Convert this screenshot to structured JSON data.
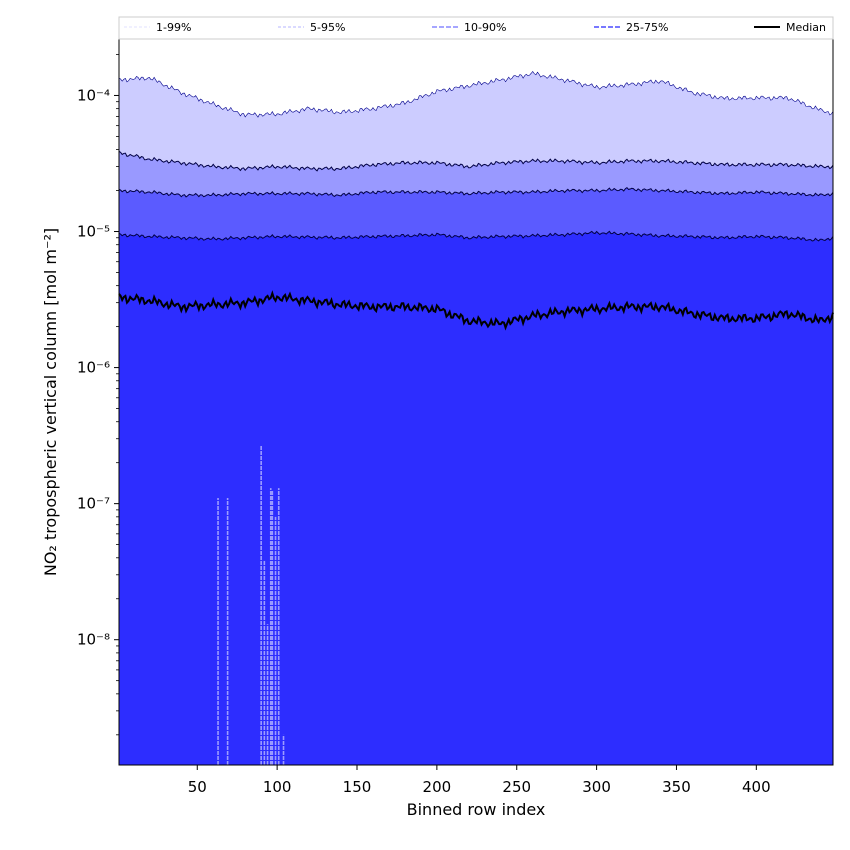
{
  "chart_data": {
    "type": "area",
    "xlabel": "Binned row index",
    "ylabel": "NO₂ tropospheric vertical column [mol m⁻²]",
    "xlim": [
      1,
      448
    ],
    "ylim": [
      1.2e-09,
      0.00026
    ],
    "yscale": "log",
    "grid": false,
    "legend_position": "top",
    "x_ticks": [
      50,
      100,
      150,
      200,
      250,
      300,
      350,
      400
    ],
    "y_ticks": [
      {
        "value": 1e-08,
        "label": "10⁻⁸"
      },
      {
        "value": 1e-07,
        "label": "10⁻⁷"
      },
      {
        "value": 1e-06,
        "label": "10⁻⁶"
      },
      {
        "value": 1e-05,
        "label": "10⁻⁵"
      },
      {
        "value": 0.0001,
        "label": "10⁻⁴"
      }
    ],
    "x": [
      1,
      20,
      40,
      60,
      80,
      100,
      120,
      140,
      160,
      180,
      200,
      220,
      240,
      260,
      280,
      300,
      320,
      340,
      360,
      380,
      400,
      420,
      440,
      448
    ],
    "series": [
      {
        "name": "99%",
        "values": [
          0.00013,
          0.000135,
          0.000105,
          8.6e-05,
          7.2e-05,
          7.3e-05,
          8e-05,
          7.5e-05,
          8e-05,
          8.8e-05,
          0.000107,
          0.000118,
          0.00013,
          0.000145,
          0.00013,
          0.000115,
          0.00012,
          0.000128,
          0.000105,
          9.5e-05,
          9.6e-05,
          9.6e-05,
          7.8e-05,
          7.4e-05
        ]
      },
      {
        "name": "95%",
        "values": [
          3.8e-05,
          3.4e-05,
          3.2e-05,
          3e-05,
          2.9e-05,
          3e-05,
          2.9e-05,
          2.9e-05,
          3.1e-05,
          3.2e-05,
          3.2e-05,
          3e-05,
          3.2e-05,
          3.3e-05,
          3.3e-05,
          3.2e-05,
          3.3e-05,
          3.3e-05,
          3.2e-05,
          3.1e-05,
          3.1e-05,
          3.1e-05,
          3e-05,
          3e-05
        ]
      },
      {
        "name": "90%",
        "values": [
          2e-05,
          1.95e-05,
          1.85e-05,
          1.85e-05,
          1.9e-05,
          1.9e-05,
          1.9e-05,
          1.85e-05,
          1.95e-05,
          1.95e-05,
          1.95e-05,
          1.9e-05,
          1.95e-05,
          1.95e-05,
          2e-05,
          2e-05,
          2.05e-05,
          2e-05,
          1.95e-05,
          1.9e-05,
          1.95e-05,
          1.9e-05,
          1.85e-05,
          1.9e-05
        ]
      },
      {
        "name": "75%",
        "values": [
          9.5e-06,
          9.2e-06,
          9e-06,
          8.8e-06,
          9e-06,
          9.2e-06,
          9.1e-06,
          9e-06,
          9.2e-06,
          9.3e-06,
          9.5e-06,
          9e-06,
          9.2e-06,
          9.3e-06,
          9.5e-06,
          9.8e-06,
          9.6e-06,
          9.3e-06,
          9.2e-06,
          9e-06,
          9.2e-06,
          9e-06,
          8.6e-06,
          9e-06
        ]
      },
      {
        "name": "Median",
        "values": [
          3.3e-06,
          3.1e-06,
          2.8e-06,
          2.9e-06,
          3e-06,
          3.3e-06,
          3.1e-06,
          2.9e-06,
          2.8e-06,
          2.8e-06,
          2.7e-06,
          2.2e-06,
          2.1e-06,
          2.4e-06,
          2.6e-06,
          2.7e-06,
          2.8e-06,
          2.8e-06,
          2.5e-06,
          2.3e-06,
          2.3e-06,
          2.5e-06,
          2.2e-06,
          2.4e-06
        ]
      }
    ],
    "fill_colors": {
      "band_1_99": "#ccccff",
      "band_5_95": "#9999ff",
      "band_10_90": "#5b5bff",
      "band_25_75": "#2d2dff",
      "median_line": "#000000"
    },
    "low_spikes": [
      {
        "x": 63,
        "low": 1.2e-09,
        "high": 1.1e-07
      },
      {
        "x": 69,
        "low": 1.2e-09,
        "high": 1.1e-07
      },
      {
        "x": 90,
        "low": 1.2e-09,
        "high": 2.7e-07
      },
      {
        "x": 92,
        "low": 1.2e-09,
        "high": 3.8e-08
      },
      {
        "x": 94,
        "low": 1.2e-09,
        "high": 1.3e-08
      },
      {
        "x": 96,
        "low": 1.2e-09,
        "high": 1.3e-07
      },
      {
        "x": 97,
        "low": 1.2e-09,
        "high": 1.25e-07
      },
      {
        "x": 99,
        "low": 1.2e-09,
        "high": 8e-08
      },
      {
        "x": 101,
        "low": 1.2e-09,
        "high": 1.3e-07
      },
      {
        "x": 104,
        "low": 1.2e-09,
        "high": 2e-09
      }
    ]
  },
  "legend": [
    {
      "label": "1-99%",
      "style": "band_1_99"
    },
    {
      "label": "5-95%",
      "style": "band_5_95"
    },
    {
      "label": "10-90%",
      "style": "band_10_90"
    },
    {
      "label": "25-75%",
      "style": "band_25_75"
    },
    {
      "label": "Median",
      "style": "median_line"
    }
  ]
}
